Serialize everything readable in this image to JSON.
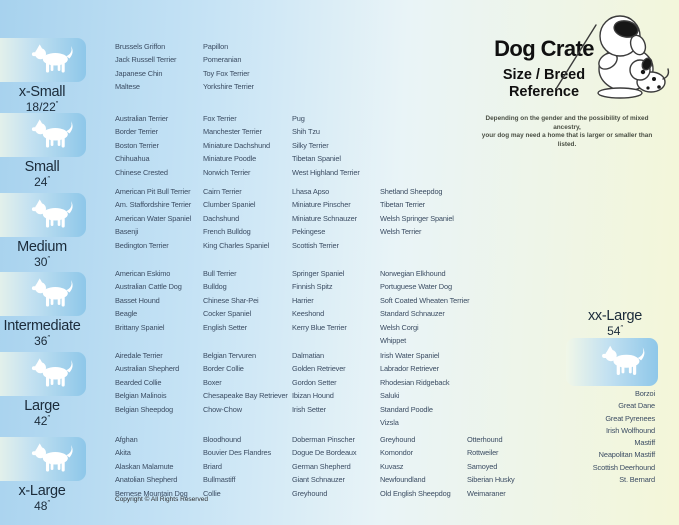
{
  "header": {
    "title": "Dog Crate",
    "subtitle_line1": "Size / Breed",
    "subtitle_line2": "Reference",
    "disclaimer_line1": "Depending on the gender and the possibility of mixed ancestry,",
    "disclaimer_line2": "your dog may need a home that is larger or smaller than listed.",
    "mascot_icon": "sheepdog-with-pointer-and-puppy-cartoon"
  },
  "footer": {
    "copyright": "Copyright © All Rights Reserved"
  },
  "colors": {
    "bg_left": "#a7d2ee",
    "bg_mid": "#e9f4f7",
    "bg_right": "#f4f6d8",
    "tile_start": "#f1f7e8",
    "tile_end": "#8ec7e9",
    "label_text": "#1b2b3a",
    "breed_text": "#3c4d63",
    "title_text": "#101010",
    "disclaimer_text": "#4a4f44"
  },
  "sizes": [
    {
      "label": "x-Small",
      "dimension": "18/22",
      "unit": "″",
      "icon": "papillon-silhouette-icon",
      "columns": [
        [
          "Brussels Griffon",
          "Jack Russell Terrier",
          "Japanese Chin",
          "Maltese"
        ],
        [
          "Papillon",
          "Pomeranian",
          "Toy Fox Terrier",
          "Yorkshire Terrier"
        ]
      ]
    },
    {
      "label": "Small",
      "dimension": "24",
      "unit": "″",
      "icon": "terrier-silhouette-icon",
      "columns": [
        [
          "Australian Terrier",
          "Border Terrier",
          "Boston Terrier",
          "Chihuahua",
          "Chinese Crested"
        ],
        [
          "Fox Terrier",
          "Manchester Terrier",
          "Miniature Dachshund",
          "Miniature Poodle",
          "Norwich Terrier"
        ],
        [
          "Pug",
          "Shih Tzu",
          "Silky Terrier",
          "Tibetan Spaniel",
          "West Highland Terrier"
        ]
      ]
    },
    {
      "label": "Medium",
      "dimension": "30",
      "unit": "″",
      "icon": "westie-silhouette-icon",
      "columns": [
        [
          "American Pit Bull Terrier",
          "Am. Staffordshire Terrier",
          "American Water Spaniel",
          "Basenji",
          "Bedington Terrier"
        ],
        [
          "Cairn Terrier",
          "Clumber Spaniel",
          "Dachshund",
          "French Bulldog",
          "King Charles Spaniel"
        ],
        [
          "Lhasa Apso",
          "Miniature Pinscher",
          "Miniature Schnauzer",
          "Pekingese",
          "Scottish Terrier"
        ],
        [
          "Shetland Sheepdog",
          "Tibetan Terrier",
          "Welsh Springer Spaniel",
          "Welsh Terrier"
        ]
      ]
    },
    {
      "label": "Intermediate",
      "dimension": "36",
      "unit": "″",
      "icon": "spaniel-silhouette-icon",
      "columns": [
        [
          "American Eskimo",
          "Australian Cattle Dog",
          "Basset Hound",
          "Beagle",
          "Brittany Spaniel"
        ],
        [
          "Bull Terrier",
          "Bulldog",
          "Chinese Shar-Pei",
          "Cocker Spaniel",
          "English Setter"
        ],
        [
          "Springer Spaniel",
          "Finnish Spitz",
          "Harrier",
          "Keeshond",
          "Kerry Blue Terrier"
        ],
        [
          "Norwegian Elkhound",
          "Portuguese Water Dog",
          "Soft Coated Wheaten Terrier",
          "Standard Schnauzer",
          "Welsh Corgi",
          "Whippet"
        ]
      ]
    },
    {
      "label": "Large",
      "dimension": "42",
      "unit": "″",
      "icon": "retriever-silhouette-icon",
      "columns": [
        [
          "Airedale Terrier",
          "Australian Shepherd",
          "Bearded Collie",
          "Belgian Malinois",
          "Belgian Sheepdog"
        ],
        [
          "Belgian Tervuren",
          "Border Collie",
          "Boxer",
          "Chesapeake Bay Retriever",
          "Chow-Chow"
        ],
        [
          "Dalmatian",
          "Golden Retriever",
          "Gordon Setter",
          "Ibizan Hound",
          "Irish Setter"
        ],
        [
          "Irish Water Spaniel",
          "Labrador Retriever",
          "Rhodesian Ridgeback",
          "Saluki",
          "Standard Poodle",
          "Vizsla"
        ]
      ]
    },
    {
      "label": "x-Large",
      "dimension": "48",
      "unit": "″",
      "icon": "akita-silhouette-icon",
      "columns": [
        [
          "Afghan",
          "Akita",
          "Alaskan Malamute",
          "Anatolian Shepherd",
          "Bernese Mountain Dog"
        ],
        [
          "Bloodhound",
          "Bouvier Des Flandres",
          "Briard",
          "Bullmastiff",
          "Collie"
        ],
        [
          "Doberman Pinscher",
          "Dogue De Bordeaux",
          "German Shepherd",
          "Giant Schnauzer",
          "Greyhound"
        ],
        [
          "Greyhound",
          "Komondor",
          "Kuvasz",
          "Newfoundland",
          "Old English Sheepdog"
        ],
        [
          "Otterhound",
          "Rottweiler",
          "Samoyed",
          "Siberian Husky",
          "Weimaraner"
        ]
      ]
    },
    {
      "label": "xx-Large",
      "dimension": "54",
      "unit": "″",
      "icon": "great-dane-silhouette-icon",
      "placement": "right",
      "columns": [
        [
          "Borzoi",
          "Great Dane",
          "Great Pyrenees",
          "Irish Wolfhound",
          "Mastiff",
          "Neapolitan Mastiff",
          "Scottish Deerhound",
          "St. Bernard"
        ]
      ]
    }
  ]
}
